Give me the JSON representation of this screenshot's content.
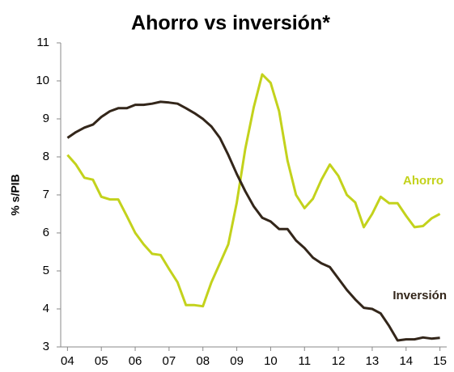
{
  "chart_data": {
    "type": "line",
    "title": "Ahorro vs inversión*",
    "ylabel": "% s/PIB",
    "x": [
      2004,
      2004.25,
      2004.5,
      2004.75,
      2005,
      2005.25,
      2005.5,
      2005.75,
      2006,
      2006.25,
      2006.5,
      2006.75,
      2007,
      2007.25,
      2007.5,
      2007.75,
      2008,
      2008.25,
      2008.5,
      2008.75,
      2009,
      2009.25,
      2009.5,
      2009.75,
      2010,
      2010.25,
      2010.5,
      2010.75,
      2011,
      2011.25,
      2011.5,
      2011.75,
      2012,
      2012.25,
      2012.5,
      2012.75,
      2013,
      2013.25,
      2013.5,
      2013.75,
      2014,
      2014.25,
      2014.5,
      2014.75,
      2015
    ],
    "series": [
      {
        "name": "Ahorro",
        "color": "#c3d21c",
        "values": [
          8.05,
          7.8,
          7.45,
          7.4,
          6.95,
          6.88,
          6.88,
          6.45,
          6.0,
          5.7,
          5.45,
          5.42,
          5.05,
          4.7,
          4.1,
          4.1,
          4.07,
          4.7,
          5.2,
          5.7,
          6.8,
          8.2,
          9.3,
          10.17,
          9.95,
          9.2,
          7.9,
          7.0,
          6.65,
          6.9,
          7.4,
          7.8,
          7.5,
          7.0,
          6.8,
          6.15,
          6.5,
          6.95,
          6.78,
          6.78,
          6.45,
          6.15,
          6.18,
          6.38,
          6.5
        ]
      },
      {
        "name": "Inversión",
        "color": "#33261a",
        "values": [
          8.5,
          8.65,
          8.77,
          8.85,
          9.05,
          9.2,
          9.28,
          9.28,
          9.37,
          9.37,
          9.4,
          9.45,
          9.43,
          9.4,
          9.28,
          9.15,
          9.0,
          8.8,
          8.5,
          8.05,
          7.55,
          7.1,
          6.7,
          6.4,
          6.3,
          6.1,
          6.1,
          5.8,
          5.6,
          5.35,
          5.2,
          5.1,
          4.8,
          4.5,
          4.25,
          4.03,
          4.0,
          3.88,
          3.55,
          3.17,
          3.2,
          3.2,
          3.25,
          3.22,
          3.24
        ]
      }
    ],
    "xlim": [
      2003.8,
      2015.2
    ],
    "xticks": [
      {
        "value": 2004,
        "label": "04"
      },
      {
        "value": 2005,
        "label": "05"
      },
      {
        "value": 2006,
        "label": "06"
      },
      {
        "value": 2007,
        "label": "07"
      },
      {
        "value": 2008,
        "label": "08"
      },
      {
        "value": 2009,
        "label": "09"
      },
      {
        "value": 2010,
        "label": "10"
      },
      {
        "value": 2011,
        "label": "11"
      },
      {
        "value": 2012,
        "label": "12"
      },
      {
        "value": 2013,
        "label": "13"
      },
      {
        "value": 2014,
        "label": "14"
      },
      {
        "value": 2015,
        "label": "15"
      }
    ],
    "ylim": [
      3,
      11
    ],
    "yticks": [
      3,
      4,
      5,
      6,
      7,
      8,
      9,
      10,
      11
    ]
  }
}
